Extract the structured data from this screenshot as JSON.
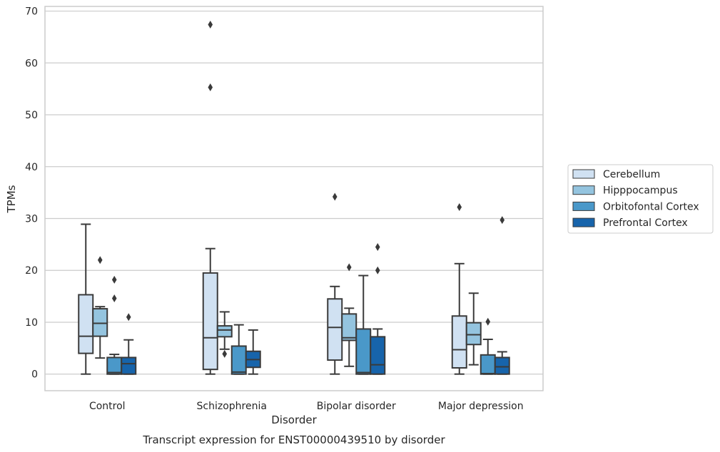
{
  "chart_data": {
    "type": "box",
    "title": "Transcript expression for ENST00000439510 by disorder",
    "xlabel": "Disorder",
    "ylabel": "TPMs",
    "ylim": [
      -3.2,
      70.9
    ],
    "yticks": [
      0,
      10,
      20,
      30,
      40,
      50,
      60,
      70
    ],
    "grid": "horizontal",
    "legend_placement": "right",
    "categories": [
      "Control",
      "Schizophrenia",
      "Bipolar disorder",
      "Major depression"
    ],
    "series": [
      {
        "name": "Cerebellum",
        "color": "#d0e1f2",
        "boxes": [
          {
            "low": 0,
            "q1": 4.0,
            "median": 7.3,
            "q3": 15.3,
            "high": 28.9,
            "outliers": []
          },
          {
            "low": 0,
            "q1": 0.9,
            "median": 7.0,
            "q3": 19.5,
            "high": 24.2,
            "outliers": [
              55.3,
              67.4
            ]
          },
          {
            "low": 0,
            "q1": 2.7,
            "median": 9.0,
            "q3": 14.5,
            "high": 16.9,
            "outliers": [
              34.2
            ]
          },
          {
            "low": 0,
            "q1": 1.2,
            "median": 4.7,
            "q3": 11.2,
            "high": 21.3,
            "outliers": [
              32.2
            ]
          }
        ]
      },
      {
        "name": "Hipppocampus",
        "color": "#94c4df",
        "boxes": [
          {
            "low": 3.1,
            "q1": 7.3,
            "median": 9.8,
            "q3": 12.6,
            "high": 13.0,
            "outliers": [
              22.0
            ]
          },
          {
            "low": 4.8,
            "q1": 7.2,
            "median": 8.5,
            "q3": 9.3,
            "high": 12.0,
            "outliers": [
              3.9
            ]
          },
          {
            "low": 1.5,
            "q1": 6.5,
            "median": 7.0,
            "q3": 11.6,
            "high": 12.7,
            "outliers": [
              20.6
            ]
          },
          {
            "low": 1.8,
            "q1": 5.7,
            "median": 7.6,
            "q3": 9.9,
            "high": 15.6,
            "outliers": []
          }
        ]
      },
      {
        "name": "Orbitofontal Cortex",
        "color": "#4a98c9",
        "boxes": [
          {
            "low": 0,
            "q1": 0,
            "median": 0.3,
            "q3": 3.2,
            "high": 3.8,
            "outliers": [
              14.6,
              18.2
            ]
          },
          {
            "low": 0,
            "q1": 0,
            "median": 0.4,
            "q3": 5.4,
            "high": 9.5,
            "outliers": []
          },
          {
            "low": 0,
            "q1": 0,
            "median": 0.3,
            "q3": 8.7,
            "high": 19.0,
            "outliers": []
          },
          {
            "low": 0,
            "q1": 0,
            "median": 0.1,
            "q3": 3.7,
            "high": 6.7,
            "outliers": [
              10.1
            ]
          }
        ]
      },
      {
        "name": "Prefrontal Cortex",
        "color": "#1764ab",
        "boxes": [
          {
            "low": 0,
            "q1": 0,
            "median": 2.0,
            "q3": 3.2,
            "high": 6.6,
            "outliers": [
              11.0
            ]
          },
          {
            "low": 0,
            "q1": 1.3,
            "median": 2.8,
            "q3": 4.4,
            "high": 8.5,
            "outliers": []
          },
          {
            "low": 0,
            "q1": 0,
            "median": 1.8,
            "q3": 7.2,
            "high": 8.7,
            "outliers": [
              20.0,
              24.5
            ]
          },
          {
            "low": 0,
            "q1": 0,
            "median": 1.4,
            "q3": 3.2,
            "high": 4.3,
            "outliers": [
              29.7
            ]
          }
        ]
      }
    ]
  }
}
